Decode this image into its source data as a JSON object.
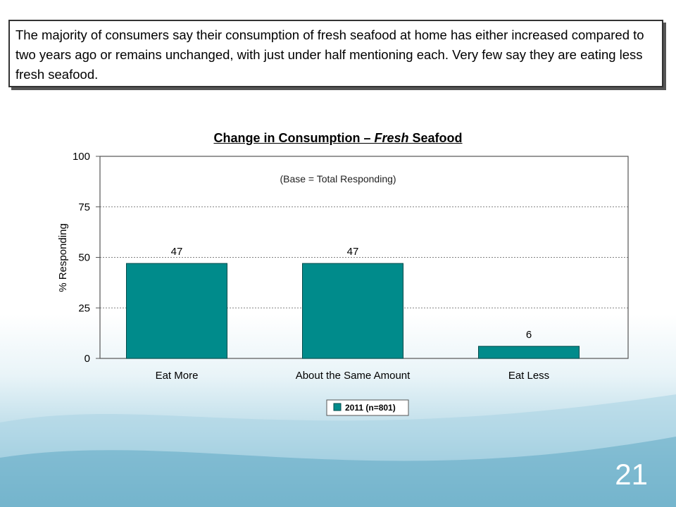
{
  "callout": {
    "text": "The majority of consumers say their consumption of fresh seafood at home has either increased compared to two years ago or remains unchanged, with just under half mentioning each.  Very few say they are eating less fresh seafood."
  },
  "chart_title": {
    "prefix": "Change in Consumption – ",
    "emphasis": "Fresh",
    "suffix": " Seafood"
  },
  "slide_number": "21",
  "colors": {
    "bar": "#008b8b",
    "bar_border": "#004a4a",
    "grid": "#808080"
  },
  "chart_data": {
    "type": "bar",
    "title": "Change in Consumption – Fresh Seafood",
    "subtitle": "(Base = Total Responding)",
    "xlabel": "",
    "ylabel": "% Responding",
    "ylim": [
      0,
      100
    ],
    "yticks": [
      0,
      25,
      50,
      75,
      100
    ],
    "categories": [
      "Eat More",
      "About the Same Amount",
      "Eat Less"
    ],
    "series": [
      {
        "name": "2011 (n=801)",
        "values": [
          47,
          47,
          6
        ]
      }
    ],
    "data_labels": [
      "47",
      "47",
      "6"
    ],
    "grid": true,
    "legend": "bottom-center"
  }
}
